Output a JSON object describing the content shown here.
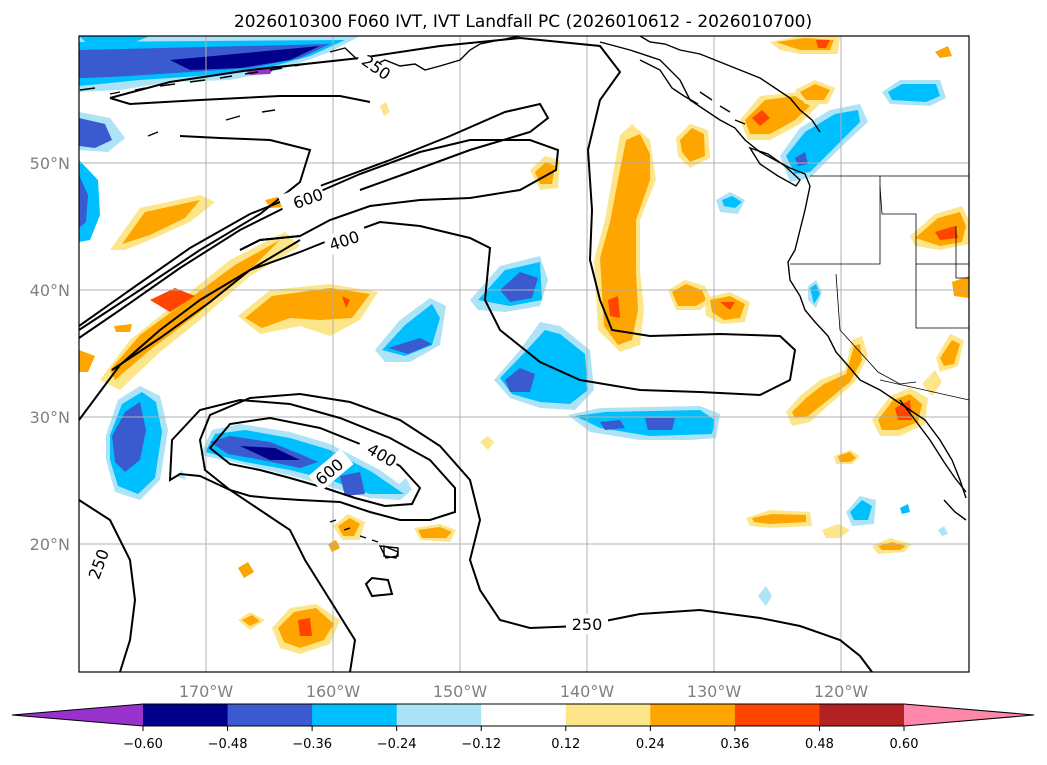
{
  "title": "2026010300 F060 IVT, IVT Landfall PC (2026010612 - 2026010700)",
  "lat_labels": [
    "50°N",
    "40°N",
    "30°N",
    "20°N"
  ],
  "lon_labels": [
    "170°W",
    "160°W",
    "150°W",
    "140°W",
    "130°W",
    "120°W"
  ],
  "contour_labels": {
    "c600_upper": "600",
    "c400_upper": "400",
    "c600_lower": "600",
    "c400_lower": "400",
    "c250_left": "250",
    "c250_bottom": "250",
    "c250_top": "250"
  },
  "colorbar": {
    "ticks": [
      "−0.60",
      "−0.48",
      "−0.36",
      "−0.24",
      "−0.12",
      "0.12",
      "0.24",
      "0.36",
      "0.48",
      "0.60"
    ],
    "colors": [
      "#9932cc",
      "#00008b",
      "#3a5bd0",
      "#00bfff",
      "#ade3f7",
      "#ffffff",
      "#fde68a",
      "#ffa500",
      "#ff4500",
      "#b22222",
      "#ff88aa"
    ]
  }
}
